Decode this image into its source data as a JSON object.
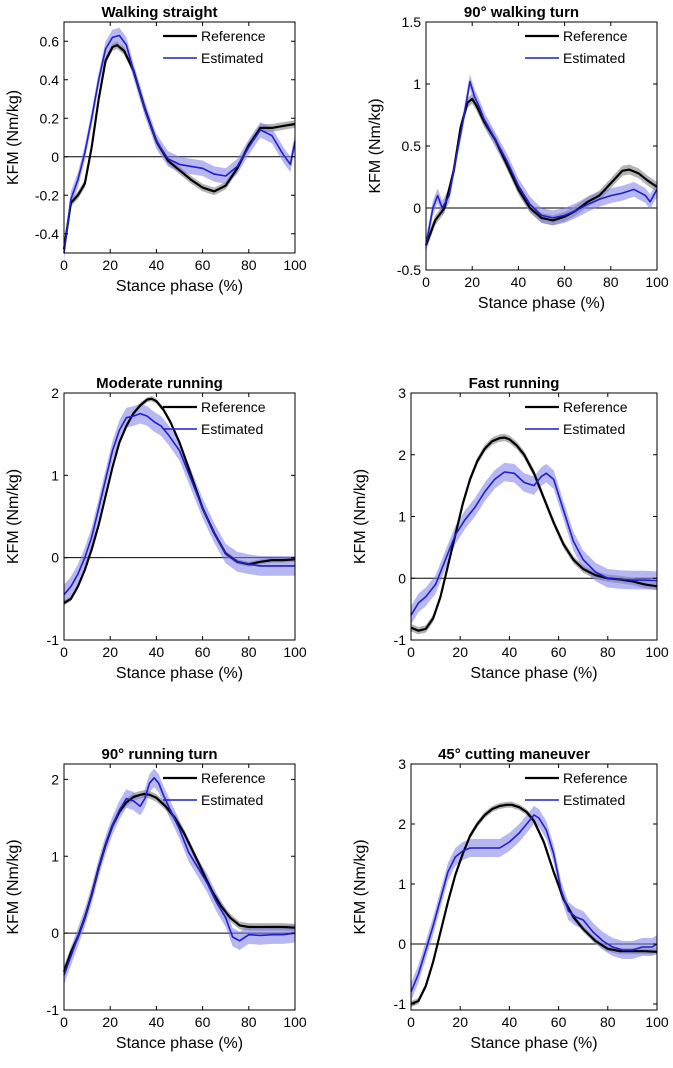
{
  "colors": {
    "reference": "#000000",
    "estimated": "#1f1fcc",
    "reference_band": "#9a9a9a",
    "estimated_band": "#7b7be8"
  },
  "chart_data": [
    {
      "type": "line",
      "title": "Walking straight",
      "xlabel": "Stance phase (%)",
      "ylabel": "KFM (Nm/kg)",
      "xlim": [
        0,
        100
      ],
      "ylim": [
        -0.5,
        0.7
      ],
      "xticks": [
        0,
        20,
        40,
        60,
        80,
        100
      ],
      "yticks": [
        -0.4,
        -0.2,
        0,
        0.2,
        0.4,
        0.6
      ],
      "ytick_labels": [
        "-0.4",
        "-0.2",
        "0",
        "0.2",
        "0.4",
        "0.6"
      ],
      "xtick_labels": [
        "0",
        "20",
        "40",
        "60",
        "80",
        "100"
      ],
      "legend": [
        "Reference",
        "Estimated"
      ],
      "series": [
        {
          "name": "Reference",
          "x": [
            0,
            3,
            6,
            9,
            12,
            15,
            18,
            21,
            23,
            26,
            30,
            35,
            40,
            45,
            50,
            55,
            60,
            65,
            70,
            75,
            80,
            85,
            90,
            95,
            100
          ],
          "values": [
            -0.48,
            -0.24,
            -0.2,
            -0.14,
            0.05,
            0.3,
            0.5,
            0.57,
            0.58,
            0.55,
            0.45,
            0.25,
            0.08,
            -0.02,
            -0.07,
            -0.12,
            -0.16,
            -0.18,
            -0.15,
            -0.06,
            0.06,
            0.15,
            0.15,
            0.16,
            0.17
          ],
          "band": 0.02
        },
        {
          "name": "Estimated",
          "x": [
            0,
            3,
            6,
            9,
            12,
            15,
            18,
            21,
            24,
            27,
            30,
            35,
            40,
            45,
            50,
            55,
            60,
            65,
            70,
            75,
            80,
            85,
            90,
            95,
            98,
            100
          ],
          "values": [
            -0.5,
            -0.22,
            -0.12,
            0.02,
            0.2,
            0.4,
            0.56,
            0.62,
            0.63,
            0.58,
            0.45,
            0.25,
            0.08,
            -0.01,
            -0.04,
            -0.05,
            -0.06,
            -0.09,
            -0.1,
            -0.05,
            0.05,
            0.14,
            0.11,
            0.01,
            -0.04,
            0.08
          ],
          "band": 0.04
        }
      ]
    },
    {
      "type": "line",
      "title": "90° walking turn",
      "xlabel": "Stance phase (%)",
      "ylabel": "KFM (Nm/kg)",
      "xlim": [
        0,
        100
      ],
      "ylim": [
        -0.5,
        1.5
      ],
      "xticks": [
        0,
        20,
        40,
        60,
        80,
        100
      ],
      "yticks": [
        -0.5,
        0,
        0.5,
        1,
        1.5
      ],
      "ytick_labels": [
        "-0.5",
        "0",
        "0.5",
        "1",
        "1.5"
      ],
      "xtick_labels": [
        "0",
        "20",
        "40",
        "60",
        "80",
        "100"
      ],
      "legend": [
        "Reference",
        "Estimated"
      ],
      "series": [
        {
          "name": "Reference",
          "x": [
            0,
            4,
            8,
            12,
            15,
            18,
            20,
            22,
            25,
            30,
            35,
            40,
            45,
            50,
            55,
            60,
            65,
            70,
            75,
            80,
            85,
            88,
            92,
            96,
            100
          ],
          "values": [
            -0.3,
            -0.1,
            0.0,
            0.3,
            0.65,
            0.85,
            0.88,
            0.82,
            0.7,
            0.55,
            0.35,
            0.15,
            0.0,
            -0.08,
            -0.1,
            -0.07,
            -0.02,
            0.05,
            0.1,
            0.2,
            0.3,
            0.31,
            0.28,
            0.22,
            0.17
          ],
          "band": 0.04
        },
        {
          "name": "Estimated",
          "x": [
            0,
            3,
            5,
            7,
            10,
            13,
            16,
            19,
            21,
            23,
            25,
            30,
            35,
            40,
            45,
            50,
            55,
            60,
            65,
            70,
            75,
            80,
            85,
            90,
            95,
            97,
            100
          ],
          "values": [
            -0.3,
            0.0,
            0.1,
            0.0,
            0.1,
            0.4,
            0.7,
            1.02,
            0.9,
            0.82,
            0.72,
            0.55,
            0.38,
            0.18,
            0.03,
            -0.06,
            -0.08,
            -0.06,
            -0.02,
            0.03,
            0.07,
            0.1,
            0.12,
            0.15,
            0.1,
            0.05,
            0.15
          ],
          "band": 0.06
        }
      ]
    },
    {
      "type": "line",
      "title": "Moderate running",
      "xlabel": "Stance phase (%)",
      "ylabel": "KFM (Nm/kg)",
      "xlim": [
        0,
        100
      ],
      "ylim": [
        -1,
        2
      ],
      "xticks": [
        0,
        20,
        40,
        60,
        80,
        100
      ],
      "yticks": [
        -1,
        0,
        1,
        2
      ],
      "ytick_labels": [
        "-1",
        "0",
        "1",
        "2"
      ],
      "xtick_labels": [
        "0",
        "20",
        "40",
        "60",
        "80",
        "100"
      ],
      "legend": [
        "Reference",
        "Estimated"
      ],
      "series": [
        {
          "name": "Reference",
          "x": [
            0,
            3,
            6,
            9,
            12,
            15,
            18,
            21,
            24,
            27,
            30,
            33,
            36,
            38,
            40,
            43,
            46,
            50,
            55,
            60,
            65,
            70,
            75,
            80,
            85,
            90,
            95,
            100
          ],
          "values": [
            -0.55,
            -0.5,
            -0.35,
            -0.15,
            0.1,
            0.4,
            0.75,
            1.1,
            1.4,
            1.6,
            1.75,
            1.85,
            1.92,
            1.93,
            1.9,
            1.8,
            1.65,
            1.4,
            1.0,
            0.6,
            0.3,
            0.05,
            -0.05,
            -0.08,
            -0.05,
            -0.03,
            -0.03,
            -0.02
          ],
          "band": 0.03
        },
        {
          "name": "Estimated",
          "x": [
            0,
            3,
            6,
            9,
            12,
            15,
            18,
            21,
            24,
            27,
            30,
            33,
            36,
            39,
            42,
            45,
            50,
            55,
            60,
            65,
            70,
            75,
            80,
            85,
            90,
            95,
            100
          ],
          "values": [
            -0.45,
            -0.35,
            -0.2,
            0.0,
            0.25,
            0.6,
            0.95,
            1.3,
            1.55,
            1.7,
            1.72,
            1.75,
            1.72,
            1.65,
            1.6,
            1.5,
            1.3,
            0.95,
            0.6,
            0.3,
            0.05,
            -0.05,
            -0.08,
            -0.1,
            -0.1,
            -0.1,
            -0.1
          ],
          "band": 0.12
        }
      ]
    },
    {
      "type": "line",
      "title": "Fast running",
      "xlabel": "Stance phase (%)",
      "ylabel": "KFM (Nm/kg)",
      "xlim": [
        0,
        100
      ],
      "ylim": [
        -1,
        3
      ],
      "xticks": [
        0,
        20,
        40,
        60,
        80,
        100
      ],
      "yticks": [
        -1,
        0,
        1,
        2,
        3
      ],
      "ytick_labels": [
        "-1",
        "0",
        "1",
        "2",
        "3"
      ],
      "xtick_labels": [
        "0",
        "20",
        "40",
        "60",
        "80",
        "100"
      ],
      "legend": [
        "Reference",
        "Estimated"
      ],
      "series": [
        {
          "name": "Reference",
          "x": [
            0,
            3,
            6,
            9,
            12,
            15,
            18,
            21,
            24,
            27,
            30,
            33,
            36,
            38,
            40,
            43,
            46,
            50,
            54,
            58,
            62,
            66,
            70,
            75,
            80,
            85,
            90,
            95,
            100
          ],
          "values": [
            -0.8,
            -0.85,
            -0.82,
            -0.65,
            -0.3,
            0.2,
            0.7,
            1.2,
            1.6,
            1.9,
            2.1,
            2.22,
            2.27,
            2.28,
            2.25,
            2.15,
            2.0,
            1.7,
            1.3,
            0.9,
            0.55,
            0.3,
            0.15,
            0.05,
            0.0,
            -0.02,
            -0.05,
            -0.1,
            -0.13
          ],
          "band": 0.06
        },
        {
          "name": "Estimated",
          "x": [
            0,
            3,
            6,
            10,
            14,
            18,
            22,
            26,
            30,
            34,
            38,
            42,
            46,
            50,
            53,
            55,
            58,
            62,
            66,
            70,
            75,
            80,
            85,
            90,
            95,
            100
          ],
          "values": [
            -0.6,
            -0.4,
            -0.3,
            -0.1,
            0.3,
            0.7,
            0.95,
            1.15,
            1.4,
            1.6,
            1.72,
            1.7,
            1.55,
            1.5,
            1.65,
            1.7,
            1.6,
            1.1,
            0.6,
            0.3,
            0.1,
            0.0,
            -0.02,
            -0.03,
            -0.03,
            -0.04
          ],
          "band": 0.15
        }
      ]
    },
    {
      "type": "line",
      "title": "90° running turn",
      "xlabel": "Stance phase (%)",
      "ylabel": "KFM (Nm/kg)",
      "xlim": [
        0,
        100
      ],
      "ylim": [
        -1,
        2.2
      ],
      "xticks": [
        0,
        20,
        40,
        60,
        80,
        100
      ],
      "yticks": [
        -1,
        0,
        1,
        2
      ],
      "ytick_labels": [
        "-1",
        "0",
        "1",
        "2"
      ],
      "xtick_labels": [
        "0",
        "20",
        "40",
        "60",
        "80",
        "100"
      ],
      "legend": [
        "Reference",
        "Estimated"
      ],
      "series": [
        {
          "name": "Reference",
          "x": [
            0,
            3,
            6,
            9,
            12,
            15,
            18,
            21,
            24,
            27,
            30,
            33,
            35,
            37,
            40,
            44,
            48,
            52,
            56,
            60,
            64,
            68,
            72,
            76,
            80,
            85,
            90,
            95,
            100
          ],
          "values": [
            -0.5,
            -0.25,
            -0.05,
            0.2,
            0.5,
            0.85,
            1.15,
            1.4,
            1.58,
            1.7,
            1.77,
            1.8,
            1.81,
            1.8,
            1.76,
            1.65,
            1.5,
            1.3,
            1.05,
            0.8,
            0.55,
            0.35,
            0.2,
            0.1,
            0.08,
            0.08,
            0.08,
            0.08,
            0.07
          ],
          "band": 0.05
        },
        {
          "name": "Estimated",
          "x": [
            0,
            3,
            6,
            9,
            12,
            15,
            18,
            21,
            24,
            27,
            30,
            33,
            35,
            37,
            39,
            41,
            43,
            46,
            50,
            54,
            58,
            62,
            66,
            70,
            73,
            76,
            80,
            85,
            90,
            95,
            100
          ],
          "values": [
            -0.55,
            -0.3,
            -0.05,
            0.2,
            0.5,
            0.85,
            1.15,
            1.4,
            1.6,
            1.75,
            1.72,
            1.65,
            1.75,
            1.95,
            2.02,
            1.95,
            1.8,
            1.6,
            1.35,
            1.05,
            0.85,
            0.65,
            0.4,
            0.2,
            -0.05,
            -0.1,
            -0.02,
            -0.03,
            -0.02,
            -0.02,
            0.0
          ],
          "band": 0.12
        }
      ]
    },
    {
      "type": "line",
      "title": "45° cutting maneuver",
      "xlabel": "Stance phase (%)",
      "ylabel": "KFM (Nm/kg)",
      "xlim": [
        0,
        100
      ],
      "ylim": [
        -1.1,
        3
      ],
      "xticks": [
        0,
        20,
        40,
        60,
        80,
        100
      ],
      "yticks": [
        -1,
        0,
        1,
        2,
        3
      ],
      "ytick_labels": [
        "-1",
        "0",
        "1",
        "2",
        "3"
      ],
      "xtick_labels": [
        "0",
        "20",
        "40",
        "60",
        "80",
        "100"
      ],
      "legend": [
        "Reference",
        "Estimated"
      ],
      "series": [
        {
          "name": "Reference",
          "x": [
            0,
            3,
            6,
            9,
            12,
            15,
            18,
            21,
            24,
            27,
            30,
            33,
            36,
            39,
            41,
            44,
            47,
            50,
            54,
            58,
            62,
            66,
            70,
            75,
            80,
            85,
            90,
            95,
            100
          ],
          "values": [
            -1.0,
            -0.95,
            -0.7,
            -0.3,
            0.2,
            0.7,
            1.15,
            1.5,
            1.8,
            2.0,
            2.15,
            2.25,
            2.3,
            2.32,
            2.32,
            2.28,
            2.2,
            2.05,
            1.7,
            1.2,
            0.75,
            0.45,
            0.25,
            0.05,
            -0.08,
            -0.12,
            -0.12,
            -0.12,
            -0.13
          ],
          "band": 0.05
        },
        {
          "name": "Estimated",
          "x": [
            0,
            3,
            6,
            9,
            12,
            15,
            18,
            21,
            24,
            28,
            32,
            36,
            40,
            44,
            48,
            50,
            52,
            55,
            58,
            61,
            64,
            67,
            70,
            74,
            78,
            82,
            86,
            90,
            94,
            98,
            100
          ],
          "values": [
            -0.8,
            -0.5,
            -0.1,
            0.3,
            0.75,
            1.2,
            1.45,
            1.55,
            1.6,
            1.6,
            1.6,
            1.6,
            1.7,
            1.85,
            2.05,
            2.15,
            2.1,
            1.9,
            1.5,
            0.9,
            0.55,
            0.45,
            0.4,
            0.2,
            0.05,
            -0.05,
            -0.1,
            -0.1,
            -0.05,
            -0.05,
            0.0
          ],
          "band": 0.15
        }
      ]
    }
  ]
}
